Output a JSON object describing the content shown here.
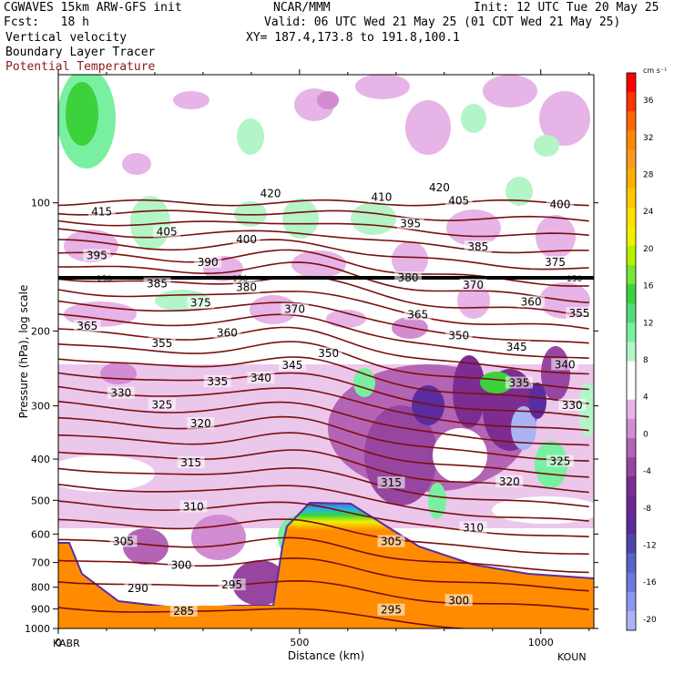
{
  "header": {
    "model": "CGWAVES 15km ARW-GFS init",
    "org": "NCAR/MMM",
    "init": "Init: 12 UTC Tue 20 May 25",
    "fcst": "Fcst:   18 h",
    "valid": "Valid: 06 UTC Wed 21 May 25 (01 CDT Wed 21 May 25)",
    "field1": "Vertical velocity",
    "field2": "Boundary Layer Tracer",
    "field3": "Potential Temperature",
    "xy": "XY= 187.4,173.8 to 191.8,100.1",
    "field3_color": "#8b1a1a"
  },
  "chart_data": {
    "type": "heatmap",
    "title": "",
    "xlabel": "Distance (km)",
    "ylabel": "Pressure (hPa), log scale",
    "x_ticks": [
      "0",
      "500",
      "1000"
    ],
    "x_end_labels": {
      "left": "KABR",
      "right": "KOUN"
    },
    "xlim": [
      0,
      1110
    ],
    "ylim": [
      1000,
      50
    ],
    "y_scale": "log",
    "y_ticks": [
      "100",
      "200",
      "300",
      "400",
      "500",
      "600",
      "700",
      "800",
      "900",
      "1000"
    ],
    "colorbar": {
      "unit": "cm s⁻¹",
      "labels": [
        "36",
        "32",
        "28",
        "24",
        "20",
        "16",
        "12",
        "8",
        "4",
        "0",
        "-4",
        "-8",
        "-12",
        "-16",
        "-20"
      ],
      "colors": [
        "#ff0000",
        "#ff3300",
        "#ff6600",
        "#ff8800",
        "#ff9a1e",
        "#ffb000",
        "#ffc800",
        "#ffe000",
        "#f0f000",
        "#b4f000",
        "#78e632",
        "#3cd23c",
        "#50dc78",
        "#78f0a0",
        "#b4f5c8",
        "#ffffff",
        "#ffffff",
        "#e6b4e6",
        "#d28cd2",
        "#b464b4",
        "#9646a0",
        "#7d2d91",
        "#6e2896",
        "#5a2ca0",
        "#5046aa",
        "#5a64c8",
        "#6e78dc",
        "#8c96f0",
        "#aab4f5"
      ]
    },
    "isentropes_K": {
      "near_surface": [
        285,
        290,
        295,
        300,
        305,
        310,
        315,
        320,
        325,
        330,
        335,
        340,
        345,
        350,
        355,
        360,
        365,
        370,
        375,
        380,
        385,
        390,
        395,
        400,
        405,
        410,
        415,
        420
      ],
      "labels": [
        {
          "theta": "415",
          "x_km": 90,
          "p_hPa": 105
        },
        {
          "theta": "420",
          "x_km": 440,
          "p_hPa": 95
        },
        {
          "theta": "410",
          "x_km": 670,
          "p_hPa": 97
        },
        {
          "theta": "420",
          "x_km": 790,
          "p_hPa": 92
        },
        {
          "theta": "405",
          "x_km": 830,
          "p_hPa": 99
        },
        {
          "theta": "400",
          "x_km": 1040,
          "p_hPa": 101
        },
        {
          "theta": "405",
          "x_km": 225,
          "p_hPa": 117
        },
        {
          "theta": "400",
          "x_km": 390,
          "p_hPa": 122
        },
        {
          "theta": "395",
          "x_km": 80,
          "p_hPa": 133
        },
        {
          "theta": "390",
          "x_km": 310,
          "p_hPa": 138
        },
        {
          "theta": "395",
          "x_km": 730,
          "p_hPa": 112
        },
        {
          "theta": "385",
          "x_km": 870,
          "p_hPa": 127
        },
        {
          "theta": "375",
          "x_km": 1030,
          "p_hPa": 138
        },
        {
          "theta": "385",
          "x_km": 205,
          "p_hPa": 155
        },
        {
          "theta": "380",
          "x_km": 390,
          "p_hPa": 158
        },
        {
          "theta": "380",
          "x_km": 725,
          "p_hPa": 150
        },
        {
          "theta": "370",
          "x_km": 860,
          "p_hPa": 156
        },
        {
          "theta": "375",
          "x_km": 295,
          "p_hPa": 172
        },
        {
          "theta": "370",
          "x_km": 490,
          "p_hPa": 178
        },
        {
          "theta": "365",
          "x_km": 745,
          "p_hPa": 183
        },
        {
          "theta": "360",
          "x_km": 980,
          "p_hPa": 171
        },
        {
          "theta": "355",
          "x_km": 1080,
          "p_hPa": 182
        },
        {
          "theta": "365",
          "x_km": 60,
          "p_hPa": 195
        },
        {
          "theta": "360",
          "x_km": 350,
          "p_hPa": 202
        },
        {
          "theta": "350",
          "x_km": 830,
          "p_hPa": 205
        },
        {
          "theta": "355",
          "x_km": 215,
          "p_hPa": 214
        },
        {
          "theta": "350",
          "x_km": 560,
          "p_hPa": 226
        },
        {
          "theta": "345",
          "x_km": 950,
          "p_hPa": 218
        },
        {
          "theta": "345",
          "x_km": 485,
          "p_hPa": 241
        },
        {
          "theta": "340",
          "x_km": 1050,
          "p_hPa": 240
        },
        {
          "theta": "335",
          "x_km": 330,
          "p_hPa": 263
        },
        {
          "theta": "340",
          "x_km": 420,
          "p_hPa": 258
        },
        {
          "theta": "335",
          "x_km": 955,
          "p_hPa": 265
        },
        {
          "theta": "330",
          "x_km": 130,
          "p_hPa": 280
        },
        {
          "theta": "325",
          "x_km": 215,
          "p_hPa": 298
        },
        {
          "theta": "330",
          "x_km": 1065,
          "p_hPa": 299
        },
        {
          "theta": "320",
          "x_km": 295,
          "p_hPa": 330
        },
        {
          "theta": "315",
          "x_km": 275,
          "p_hPa": 408
        },
        {
          "theta": "325",
          "x_km": 1040,
          "p_hPa": 405
        },
        {
          "theta": "320",
          "x_km": 935,
          "p_hPa": 452
        },
        {
          "theta": "315",
          "x_km": 690,
          "p_hPa": 455
        },
        {
          "theta": "310",
          "x_km": 280,
          "p_hPa": 518
        },
        {
          "theta": "310",
          "x_km": 860,
          "p_hPa": 580
        },
        {
          "theta": "305",
          "x_km": 135,
          "p_hPa": 625
        },
        {
          "theta": "305",
          "x_km": 690,
          "p_hPa": 625
        },
        {
          "theta": "300",
          "x_km": 255,
          "p_hPa": 710
        },
        {
          "theta": "295",
          "x_km": 360,
          "p_hPa": 790
        },
        {
          "theta": "290",
          "x_km": 165,
          "p_hPa": 805
        },
        {
          "theta": "300",
          "x_km": 830,
          "p_hPa": 860
        },
        {
          "theta": "295",
          "x_km": 690,
          "p_hPa": 905
        },
        {
          "theta": "285",
          "x_km": 260,
          "p_hPa": 910
        }
      ]
    },
    "reference_line": {
      "label": "150",
      "p_hPa": 150
    }
  }
}
